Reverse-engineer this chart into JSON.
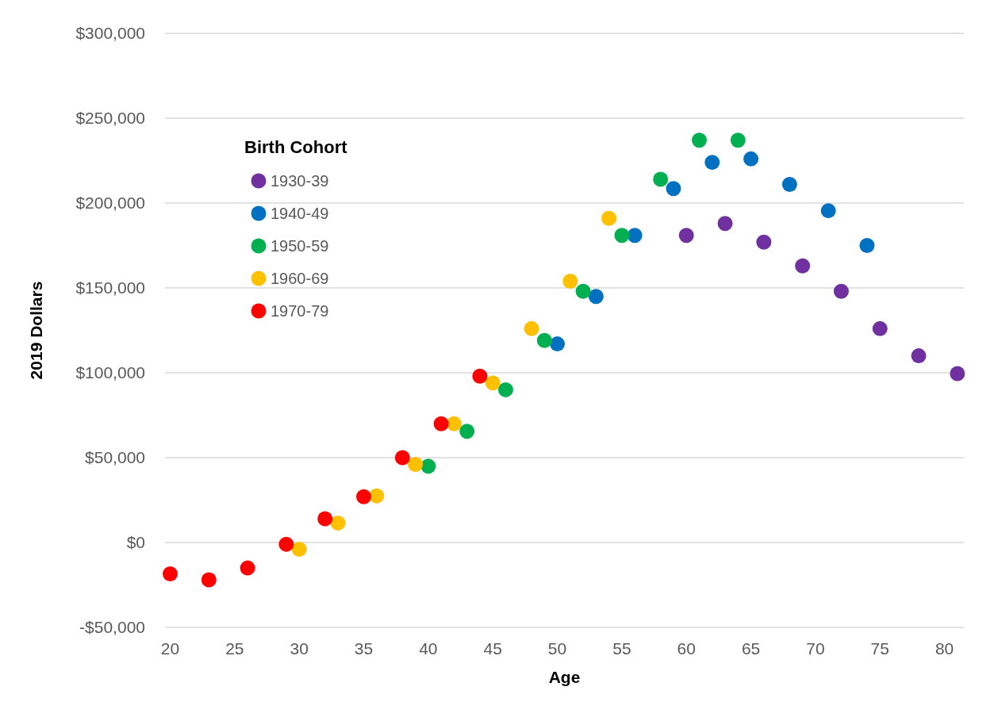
{
  "chart_data": {
    "type": "scatter",
    "xlabel": "Age",
    "ylabel": "2019 Dollars",
    "legend_title": "Birth Cohort",
    "legend": "top left",
    "grid": "y",
    "marker": "circle",
    "xlim": [
      19.6,
      81.5
    ],
    "xticks": [
      20,
      25,
      30,
      35,
      40,
      45,
      50,
      55,
      60,
      65,
      70,
      75,
      80
    ],
    "ylim": [
      -50000,
      300000
    ],
    "yticks": [
      {
        "value": -50000,
        "label": "-$50,000"
      },
      {
        "value": 0,
        "label": "$0"
      },
      {
        "value": 50000,
        "label": "$50,000"
      },
      {
        "value": 100000,
        "label": "$100,000"
      },
      {
        "value": 150000,
        "label": "$150,000"
      },
      {
        "value": 200000,
        "label": "$200,000"
      },
      {
        "value": 250000,
        "label": "$250,000"
      },
      {
        "value": 300000,
        "label": "$300,000"
      }
    ],
    "series": [
      {
        "name": "1930-39",
        "color": "#7030a0",
        "x": [
          60,
          63,
          66,
          69,
          72,
          75,
          78,
          81
        ],
        "values": [
          181000,
          188000,
          177000,
          163000,
          148000,
          126000,
          110000,
          99500
        ]
      },
      {
        "name": "1940-49",
        "color": "#0070c0",
        "x": [
          50,
          53,
          56,
          59,
          62,
          65,
          68,
          71,
          74
        ],
        "values": [
          117000,
          145000,
          181000,
          208500,
          224000,
          226000,
          211000,
          195500,
          175000
        ]
      },
      {
        "name": "1950-59",
        "color": "#00b050",
        "x": [
          40,
          43,
          46,
          49,
          52,
          55,
          58,
          61,
          64
        ],
        "values": [
          45000,
          65500,
          90000,
          119000,
          148000,
          181000,
          214000,
          237000,
          237000
        ]
      },
      {
        "name": "1960-69",
        "color": "#ffc000",
        "x": [
          30,
          33,
          36,
          39,
          42,
          45,
          48,
          51,
          54
        ],
        "values": [
          -4000,
          11500,
          27500,
          46000,
          70000,
          94000,
          126000,
          154000,
          191000
        ]
      },
      {
        "name": "1970-79",
        "color": "#ff0000",
        "x": [
          20,
          23,
          26,
          29,
          32,
          35,
          38,
          41,
          44
        ],
        "values": [
          -18500,
          -22000,
          -15000,
          -1000,
          14000,
          27000,
          50000,
          70000,
          98000
        ]
      }
    ]
  }
}
